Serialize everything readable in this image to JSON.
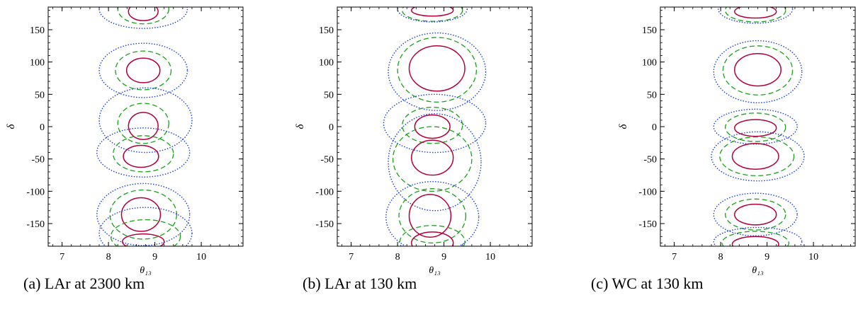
{
  "captions": [
    "(a) LAr at 2300 km",
    "(b) LAr at 130 km",
    "(c) WC at 130 km"
  ],
  "chart_data": [
    {
      "type": "contour",
      "xlabel": "θ₁₃",
      "ylabel": "δ",
      "xlim": [
        6.7,
        10.9
      ],
      "ylim": [
        -185,
        185
      ],
      "xticks": [
        7,
        8,
        9,
        10
      ],
      "yticks": [
        -150,
        -100,
        -50,
        0,
        50,
        100,
        150
      ],
      "colors": {
        "solid": "#b0003a",
        "dashed": "#1aa01a",
        "dotted": "#1a3fd6"
      },
      "contours": [
        {
          "style": "solid",
          "cx": 8.75,
          "cy": 178,
          "rx": 0.32,
          "ry": 14,
          "rot": 0
        },
        {
          "style": "dashed",
          "cx": 8.75,
          "cy": 182,
          "rx": 0.55,
          "ry": 23,
          "rot": 0
        },
        {
          "style": "dotted",
          "cx": 8.75,
          "cy": 182,
          "rx": 0.95,
          "ry": 30,
          "rot": 0
        },
        {
          "style": "solid",
          "cx": 8.75,
          "cy": 87,
          "rx": 0.36,
          "ry": 19,
          "rot": 0
        },
        {
          "style": "dashed",
          "cx": 8.75,
          "cy": 87,
          "rx": 0.6,
          "ry": 30,
          "rot": 0
        },
        {
          "style": "dotted",
          "cx": 8.75,
          "cy": 87,
          "rx": 0.95,
          "ry": 42,
          "rot": 0
        },
        {
          "style": "solid",
          "cx": 8.75,
          "cy": 1,
          "rx": 0.32,
          "ry": 21,
          "rot": 0
        },
        {
          "style": "dashed",
          "cx": 8.75,
          "cy": 5,
          "rx": 0.55,
          "ry": 31,
          "rot": 0
        },
        {
          "style": "dotted",
          "cx": 8.8,
          "cy": 10,
          "rx": 1.0,
          "ry": 50,
          "rot": 0
        },
        {
          "style": "solid",
          "cx": 8.7,
          "cy": -46,
          "rx": 0.38,
          "ry": 17,
          "rot": 0
        },
        {
          "style": "dashed",
          "cx": 8.75,
          "cy": -42,
          "rx": 0.65,
          "ry": 28,
          "rot": 0
        },
        {
          "style": "dotted",
          "cx": 8.75,
          "cy": -40,
          "rx": 1.0,
          "ry": 38,
          "rot": 0
        },
        {
          "style": "solid",
          "cx": 8.7,
          "cy": -136,
          "rx": 0.42,
          "ry": 26,
          "rot": 0
        },
        {
          "style": "dashed",
          "cx": 8.75,
          "cy": -136,
          "rx": 0.72,
          "ry": 38,
          "rot": 0
        },
        {
          "style": "dotted",
          "cx": 8.75,
          "cy": -136,
          "rx": 1.0,
          "ry": 48,
          "rot": 0
        },
        {
          "style": "solid",
          "cx": 8.75,
          "cy": -178,
          "rx": 0.45,
          "ry": 12,
          "rot": 0
        },
        {
          "style": "dashed",
          "cx": 8.8,
          "cy": -170,
          "rx": 0.75,
          "ry": 26,
          "rot": 0
        },
        {
          "style": "dotted",
          "cx": 8.8,
          "cy": -165,
          "rx": 1.0,
          "ry": 40,
          "rot": 0
        }
      ]
    },
    {
      "type": "contour",
      "xlabel": "θ₁₃",
      "ylabel": "δ",
      "xlim": [
        6.7,
        10.9
      ],
      "ylim": [
        -185,
        185
      ],
      "xticks": [
        7,
        8,
        9,
        10
      ],
      "yticks": [
        -150,
        -100,
        -50,
        0,
        50,
        100,
        150
      ],
      "colors": {
        "solid": "#b0003a",
        "dashed": "#1aa01a",
        "dotted": "#1a3fd6"
      },
      "contours": [
        {
          "style": "solid",
          "cx": 8.75,
          "cy": 180,
          "rx": 0.45,
          "ry": 9,
          "rot": 0
        },
        {
          "style": "dashed",
          "cx": 8.75,
          "cy": 180,
          "rx": 0.65,
          "ry": 17,
          "rot": 0
        },
        {
          "style": "dotted",
          "cx": 8.75,
          "cy": 182,
          "rx": 0.75,
          "ry": 20,
          "rot": 0
        },
        {
          "style": "solid",
          "cx": 8.85,
          "cy": 90,
          "rx": 0.6,
          "ry": 35,
          "rot": 0
        },
        {
          "style": "dashed",
          "cx": 8.85,
          "cy": 88,
          "rx": 0.85,
          "ry": 50,
          "rot": 0
        },
        {
          "style": "dotted",
          "cx": 8.85,
          "cy": 85,
          "rx": 1.05,
          "ry": 60,
          "rot": 0
        },
        {
          "style": "solid",
          "cx": 8.75,
          "cy": 0,
          "rx": 0.38,
          "ry": 18,
          "rot": 0
        },
        {
          "style": "dashed",
          "cx": 8.75,
          "cy": 2,
          "rx": 0.65,
          "ry": 28,
          "rot": 0
        },
        {
          "style": "dotted",
          "cx": 8.8,
          "cy": 5,
          "rx": 1.1,
          "ry": 45,
          "rot": 0
        },
        {
          "style": "solid",
          "cx": 8.75,
          "cy": -48,
          "rx": 0.45,
          "ry": 27,
          "rot": 0
        },
        {
          "style": "dashed",
          "cx": 8.75,
          "cy": -50,
          "rx": 0.85,
          "ry": 50,
          "rot": 0
        },
        {
          "style": "dotted",
          "cx": 8.8,
          "cy": -55,
          "rx": 1.0,
          "ry": 75,
          "rot": 0
        },
        {
          "style": "solid",
          "cx": 8.7,
          "cy": -138,
          "rx": 0.45,
          "ry": 33,
          "rot": 0
        },
        {
          "style": "dashed",
          "cx": 8.75,
          "cy": -138,
          "rx": 0.72,
          "ry": 42,
          "rot": 0
        },
        {
          "style": "dotted",
          "cx": 8.75,
          "cy": -140,
          "rx": 1.0,
          "ry": 55,
          "rot": 0
        },
        {
          "style": "solid",
          "cx": 8.75,
          "cy": -180,
          "rx": 0.45,
          "ry": 17,
          "rot": 0
        },
        {
          "style": "dashed",
          "cx": 8.75,
          "cy": -178,
          "rx": 0.7,
          "ry": 25,
          "rot": 0
        }
      ]
    },
    {
      "type": "contour",
      "xlabel": "θ₁₃",
      "ylabel": "δ",
      "xlim": [
        6.7,
        10.9
      ],
      "ylim": [
        -185,
        185
      ],
      "xticks": [
        7,
        8,
        9,
        10
      ],
      "yticks": [
        -150,
        -100,
        -50,
        0,
        50,
        100,
        150
      ],
      "colors": {
        "solid": "#b0003a",
        "dashed": "#1aa01a",
        "dotted": "#1a3fd6"
      },
      "contours": [
        {
          "style": "solid",
          "cx": 8.75,
          "cy": 178,
          "rx": 0.45,
          "ry": 10,
          "rot": 0
        },
        {
          "style": "dashed",
          "cx": 8.75,
          "cy": 180,
          "rx": 0.65,
          "ry": 18,
          "rot": 0
        },
        {
          "style": "dotted",
          "cx": 8.75,
          "cy": 182,
          "rx": 0.8,
          "ry": 22,
          "rot": 0
        },
        {
          "style": "solid",
          "cx": 8.8,
          "cy": 88,
          "rx": 0.5,
          "ry": 25,
          "rot": 0
        },
        {
          "style": "dashed",
          "cx": 8.8,
          "cy": 87,
          "rx": 0.75,
          "ry": 38,
          "rot": 0
        },
        {
          "style": "dotted",
          "cx": 8.8,
          "cy": 85,
          "rx": 0.95,
          "ry": 48,
          "rot": 0
        },
        {
          "style": "solid",
          "cx": 8.75,
          "cy": -2,
          "rx": 0.45,
          "ry": 13,
          "rot": 0
        },
        {
          "style": "dashed",
          "cx": 8.75,
          "cy": -1,
          "rx": 0.65,
          "ry": 22,
          "rot": 0
        },
        {
          "style": "dotted",
          "cx": 8.75,
          "cy": 0,
          "rx": 0.9,
          "ry": 27,
          "rot": 0
        },
        {
          "style": "solid",
          "cx": 8.75,
          "cy": -46,
          "rx": 0.5,
          "ry": 20,
          "rot": 0
        },
        {
          "style": "dashed",
          "cx": 8.78,
          "cy": -46,
          "rx": 0.8,
          "ry": 30,
          "rot": 0
        },
        {
          "style": "dotted",
          "cx": 8.8,
          "cy": -46,
          "rx": 1.0,
          "ry": 38,
          "rot": 0
        },
        {
          "style": "solid",
          "cx": 8.75,
          "cy": -136,
          "rx": 0.45,
          "ry": 16,
          "rot": 0
        },
        {
          "style": "dashed",
          "cx": 8.75,
          "cy": -136,
          "rx": 0.65,
          "ry": 24,
          "rot": 0
        },
        {
          "style": "dotted",
          "cx": 8.75,
          "cy": -136,
          "rx": 0.9,
          "ry": 33,
          "rot": 0
        },
        {
          "style": "solid",
          "cx": 8.75,
          "cy": -182,
          "rx": 0.5,
          "ry": 12,
          "rot": 0
        },
        {
          "style": "dashed",
          "cx": 8.75,
          "cy": -180,
          "rx": 0.72,
          "ry": 18,
          "rot": 0
        },
        {
          "style": "dotted",
          "cx": 8.8,
          "cy": -178,
          "rx": 0.95,
          "ry": 22,
          "rot": 0
        }
      ]
    }
  ]
}
